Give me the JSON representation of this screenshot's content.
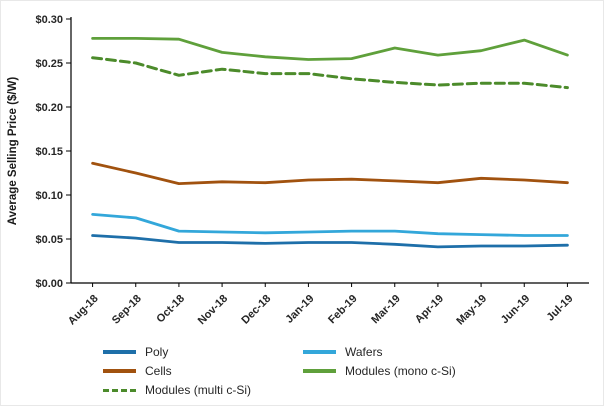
{
  "chart_data": {
    "type": "line",
    "title": "",
    "xlabel": "",
    "ylabel": "Average Selling Price ($/W)",
    "ylim": [
      0,
      0.3
    ],
    "ytick_step": 0.05,
    "ytick_prefix": "$",
    "grid": false,
    "legend_position": "bottom",
    "categories": [
      "Aug-18",
      "Sep-18",
      "Oct-18",
      "Nov-18",
      "Dec-18",
      "Jan-19",
      "Feb-19",
      "Mar-19",
      "Apr-19",
      "May-19",
      "Jun-19",
      "Jul-19"
    ],
    "series": [
      {
        "name": "Poly",
        "color": "#1e6fa9",
        "dash": "solid",
        "values": [
          0.054,
          0.051,
          0.046,
          0.046,
          0.045,
          0.046,
          0.046,
          0.044,
          0.041,
          0.042,
          0.042,
          0.043
        ]
      },
      {
        "name": "Wafers",
        "color": "#33a7da",
        "dash": "solid",
        "values": [
          0.078,
          0.074,
          0.059,
          0.058,
          0.057,
          0.058,
          0.059,
          0.059,
          0.056,
          0.055,
          0.054,
          0.054
        ]
      },
      {
        "name": "Cells",
        "color": "#a1520f",
        "dash": "solid",
        "values": [
          0.136,
          0.125,
          0.113,
          0.115,
          0.114,
          0.117,
          0.118,
          0.116,
          0.114,
          0.119,
          0.117,
          0.114
        ]
      },
      {
        "name": "Modules (mono c-Si)",
        "color": "#5fa03b",
        "dash": "solid",
        "values": [
          0.278,
          0.278,
          0.277,
          0.262,
          0.257,
          0.254,
          0.255,
          0.267,
          0.259,
          0.264,
          0.276,
          0.259
        ]
      },
      {
        "name": "Modules (multi c-Si)",
        "color": "#4c8b2b",
        "dash": "dashed",
        "values": [
          0.256,
          0.25,
          0.236,
          0.243,
          0.238,
          0.238,
          0.232,
          0.228,
          0.225,
          0.227,
          0.227,
          0.222
        ]
      }
    ]
  }
}
